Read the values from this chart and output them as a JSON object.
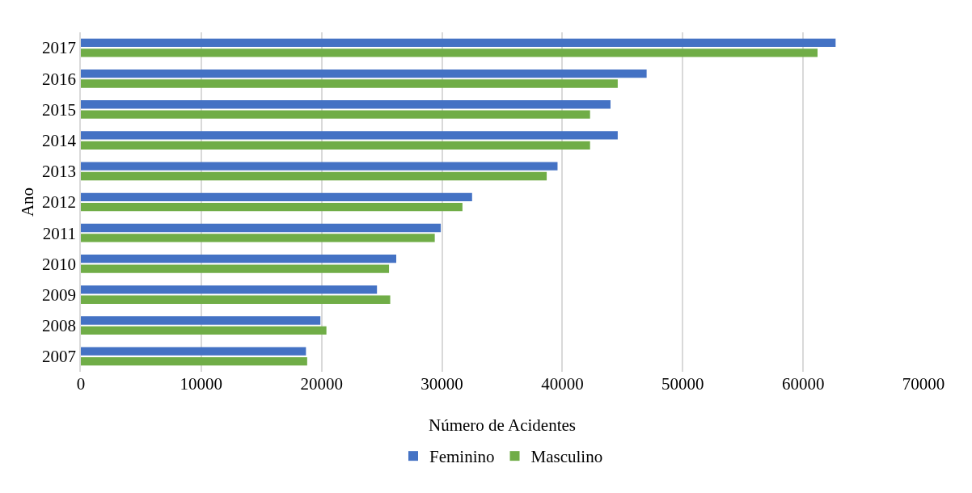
{
  "chart_data": {
    "type": "bar",
    "orientation": "horizontal",
    "xlabel": "Número de Acidentes",
    "ylabel": "Ano",
    "categories": [
      "2017",
      "2016",
      "2015",
      "2014",
      "2013",
      "2012",
      "2011",
      "2010",
      "2009",
      "2008",
      "2007"
    ],
    "series": [
      {
        "name": "Feminino",
        "color": "#4472c4",
        "values": [
          62700,
          47000,
          44000,
          44600,
          39600,
          32500,
          29900,
          26200,
          24600,
          19900,
          18700
        ]
      },
      {
        "name": "Masculino",
        "color": "#70ad47",
        "values": [
          61200,
          44600,
          42300,
          42300,
          38700,
          31700,
          29400,
          25600,
          25700,
          20400,
          18800
        ]
      }
    ],
    "xlim": [
      0,
      70000
    ],
    "xticks": [
      0,
      10000,
      20000,
      30000,
      40000,
      50000,
      60000,
      70000
    ],
    "grid": "x",
    "legend": "bottom"
  }
}
